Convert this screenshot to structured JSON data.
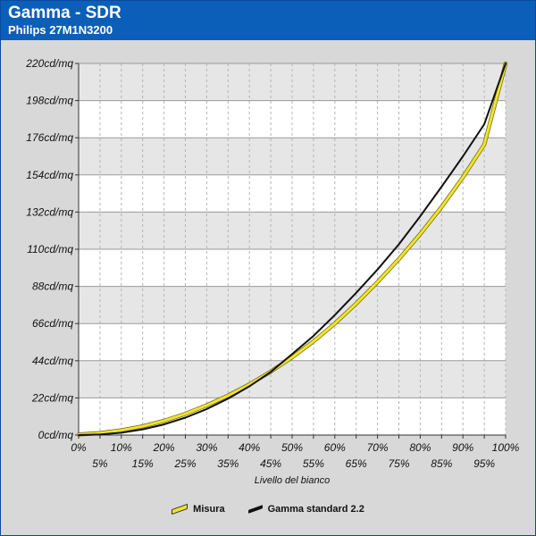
{
  "header": {
    "title": "Gamma - SDR",
    "subtitle": "Philips 27M1N3200"
  },
  "colors": {
    "header_bg": "#0c5fb8",
    "measured": "#f2e32a",
    "reference": "#111111",
    "band": "#e6e6e6"
  },
  "chart_data": {
    "type": "line",
    "title": "Gamma - SDR",
    "subtitle": "Philips 27M1N3200",
    "xlabel": "Livello del bianco",
    "ylabel": "",
    "xlim": [
      0,
      100
    ],
    "ylim": [
      0,
      220
    ],
    "x_ticks_upper": [
      "0%",
      "10%",
      "20%",
      "30%",
      "40%",
      "50%",
      "60%",
      "70%",
      "80%",
      "90%",
      "100%"
    ],
    "x_ticks_lower": [
      "5%",
      "15%",
      "25%",
      "35%",
      "45%",
      "55%",
      "65%",
      "75%",
      "85%",
      "95%"
    ],
    "y_ticks": [
      "0cd/mq",
      "22cd/mq",
      "44cd/mq",
      "66cd/mq",
      "88cd/mq",
      "110cd/mq",
      "132cd/mq",
      "154cd/mq",
      "176cd/mq",
      "198cd/mq",
      "220cd/mq"
    ],
    "grid": true,
    "legend_position": "bottom",
    "x": [
      0,
      5,
      10,
      15,
      20,
      25,
      30,
      35,
      40,
      45,
      50,
      55,
      60,
      65,
      70,
      75,
      80,
      85,
      90,
      95,
      100
    ],
    "series": [
      {
        "name": "Misura",
        "color": "#f2e32a",
        "values": [
          0.3,
          1.2,
          2.8,
          5.2,
          8.4,
          12.6,
          17.6,
          23.4,
          30.0,
          37.6,
          46.0,
          55.4,
          66.0,
          77.8,
          90.6,
          104.2,
          119.0,
          135.0,
          152.6,
          172.0,
          220.0
        ]
      },
      {
        "name": "Gamma standard 2.2",
        "color": "#111111",
        "values": [
          0.0,
          0.3,
          1.4,
          3.4,
          6.3,
          10.3,
          15.4,
          21.6,
          28.9,
          37.4,
          47.9,
          58.7,
          71.0,
          84.2,
          98.0,
          112.9,
          129.5,
          147.0,
          165.0,
          184.0,
          220.0
        ]
      }
    ]
  }
}
